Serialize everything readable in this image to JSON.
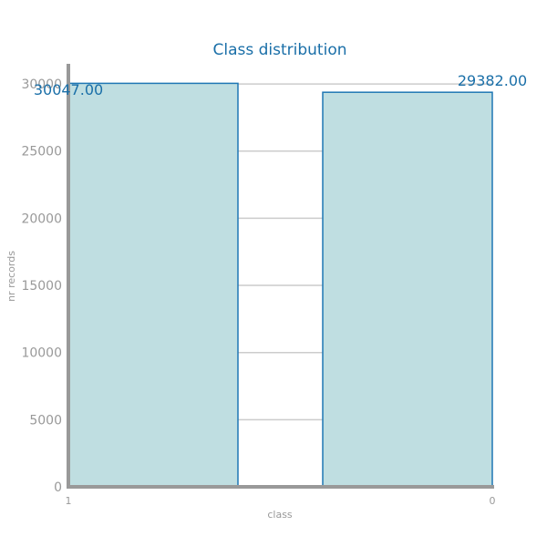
{
  "chart_data": {
    "type": "bar",
    "title": "Class distribution",
    "xlabel": "class",
    "ylabel": "nr records",
    "categories": [
      "1",
      "0"
    ],
    "values": [
      30047,
      29382
    ],
    "data_labels": [
      "30047.00",
      "29382.00"
    ],
    "ylim": [
      0,
      31500
    ],
    "yticks": [
      0,
      5000,
      10000,
      15000,
      20000,
      25000,
      30000
    ],
    "ytick_labels": [
      "0",
      "5000",
      "10000",
      "15000",
      "20000",
      "25000",
      "30000"
    ],
    "xtick_labels": [
      "1",
      "0"
    ],
    "grid": true,
    "colors": {
      "bar_fill": "#bfdee1",
      "bar_edge": "#1f77b4",
      "title": "#1a6fa8",
      "data_label": "#1a6fa8",
      "axis": "#999999",
      "tick_text": "#999999",
      "grid": "#cccccc"
    }
  }
}
